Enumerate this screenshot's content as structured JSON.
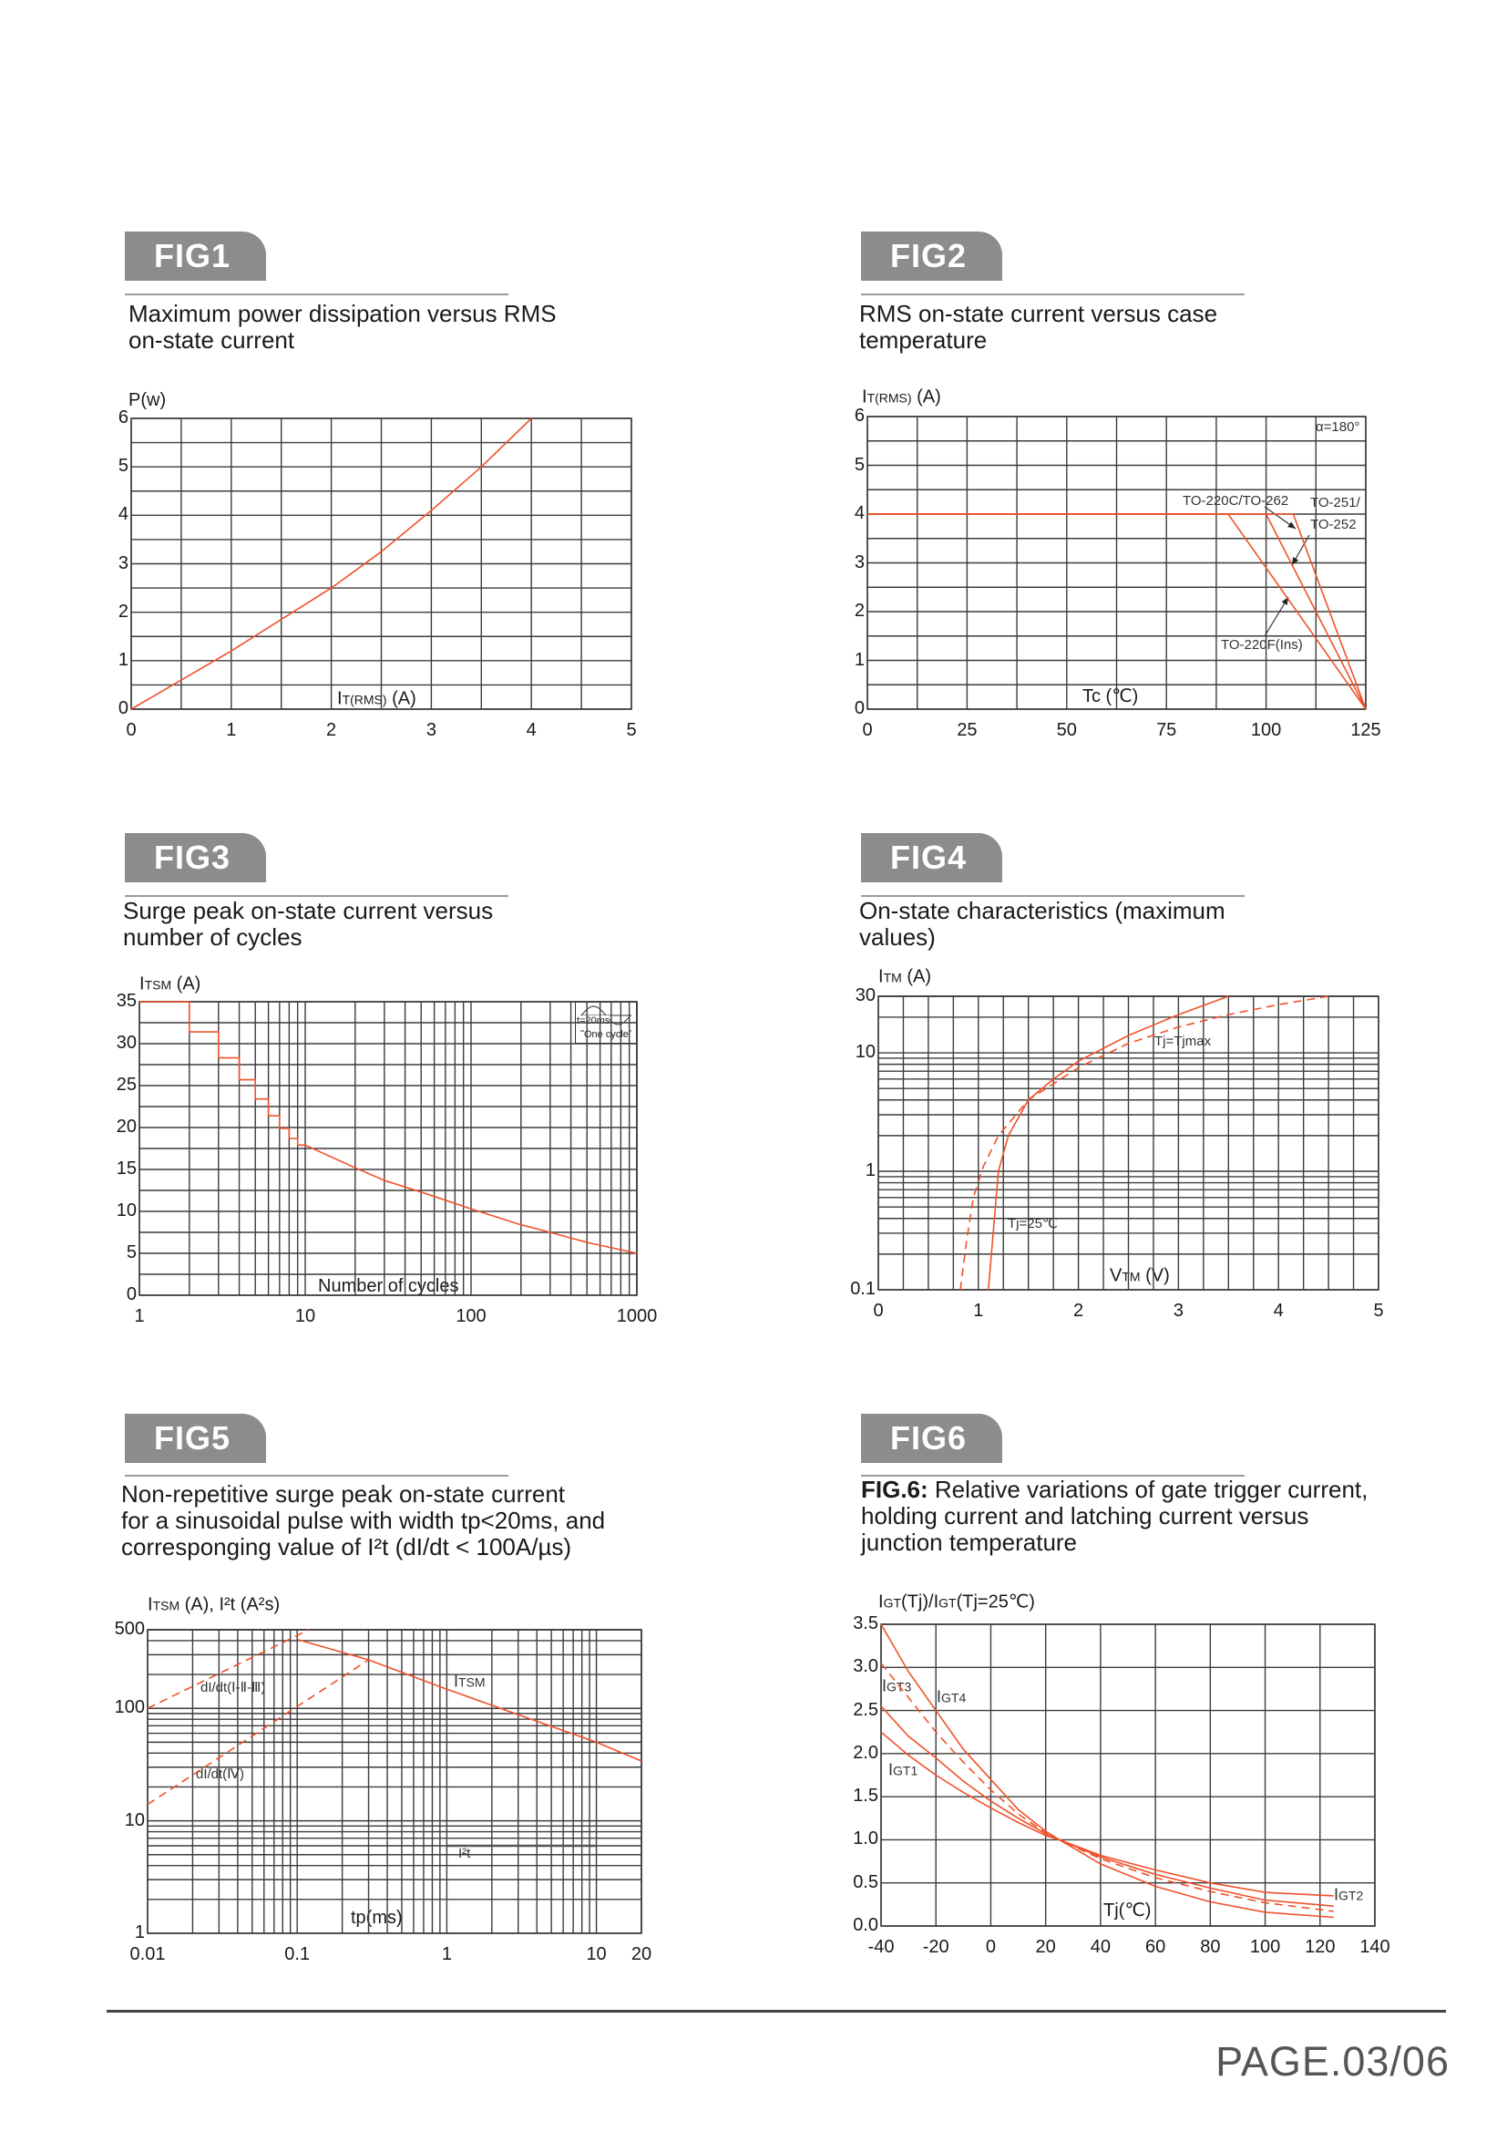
{
  "figures": [
    {
      "tab": "FIG1",
      "caption": [
        "Maximum power dissipation versus RMS",
        "on-state current"
      ]
    },
    {
      "tab": "FIG2",
      "caption": [
        "RMS on-state current versus case",
        "temperature"
      ]
    },
    {
      "tab": "FIG3",
      "caption": [
        "Surge peak on-state current versus",
        "number of cycles"
      ]
    },
    {
      "tab": "FIG4",
      "caption": [
        "On-state characteristics (maximum",
        "values)"
      ]
    },
    {
      "tab": "FIG5",
      "caption": [
        "Non-repetitive surge peak on-state current",
        "for a sinusoidal pulse with width tp<20ms, and",
        "corresponging value of I²t (dI/dt < 100A/µs)"
      ]
    },
    {
      "tab": "FIG6",
      "caption_bold": "FIG.6:",
      "caption": [
        " Relative variations of gate trigger current,",
        "holding current and latching current versus",
        "junction temperature"
      ]
    }
  ],
  "footer": "PAGE.03/06",
  "colors": {
    "curve": "#f0522a",
    "grid": "#3c3c3c",
    "tab": "#8c8c8c"
  },
  "chart_data": [
    {
      "type": "line",
      "ylabel": {
        "main": "P(w)"
      },
      "xlabel": {
        "main": "I",
        "sub": "T(RMS)",
        "rest": " (A)"
      },
      "xscale": "linear",
      "yscale": "linear",
      "xlim": [
        0,
        5
      ],
      "ylim": [
        0,
        6
      ],
      "x_grid_step": 0.5,
      "y_grid_step": 0.5,
      "grid": true,
      "x_ticks": [
        "0",
        "1",
        "2",
        "3",
        "4",
        "5"
      ],
      "y_ticks": [
        "0",
        "1",
        "2",
        "3",
        "4",
        "5",
        "6"
      ],
      "series": [
        {
          "style": "solid",
          "points": [
            [
              0,
              0
            ],
            [
              0.5,
              0.6
            ],
            [
              1,
              1.2
            ],
            [
              1.5,
              1.85
            ],
            [
              2,
              2.5
            ],
            [
              2.5,
              3.25
            ],
            [
              3,
              4.1
            ],
            [
              3.5,
              5.0
            ],
            [
              4,
              6.0
            ]
          ]
        }
      ],
      "annotations": []
    },
    {
      "type": "line",
      "ylabel": {
        "main": "I",
        "sub": "T(RMS)",
        "rest": " (A)"
      },
      "xlabel": {
        "main": "Tc (℃)"
      },
      "xscale": "linear",
      "yscale": "linear",
      "xlim": [
        0,
        125
      ],
      "ylim": [
        0,
        6
      ],
      "x_grid_step": 12.5,
      "y_grid_step": 0.5,
      "grid": true,
      "x_ticks": [
        "0",
        "25",
        "50",
        "75",
        "100",
        "125"
      ],
      "y_ticks": [
        "0",
        "1",
        "2",
        "3",
        "4",
        "5",
        "6"
      ],
      "series": [
        {
          "name": "TO-220F(Ins)",
          "style": "solid",
          "points": [
            [
              0,
              4
            ],
            [
              90.5,
              4
            ],
            [
              125,
              0
            ]
          ]
        },
        {
          "name": "TO-220C/TO-262",
          "style": "solid",
          "points": [
            [
              0,
              4
            ],
            [
              100,
              4
            ],
            [
              125,
              0
            ]
          ]
        },
        {
          "name": "TO-251/TO-252",
          "style": "solid",
          "points": [
            [
              0,
              4
            ],
            [
              106.8,
              4
            ],
            [
              125,
              0
            ]
          ]
        }
      ],
      "annotations": [
        {
          "main": "α=180°"
        },
        {
          "main": "TO-220C/TO-262"
        },
        {
          "main": "TO-251/"
        },
        {
          "main": "TO-252"
        },
        {
          "main": "TO-220F(Ins)"
        }
      ]
    },
    {
      "type": "line",
      "ylabel": {
        "main": "I",
        "sub": "TSM",
        "rest": " (A)"
      },
      "xlabel": {
        "main": "Number of cycles"
      },
      "xscale": "log",
      "yscale": "linear",
      "xlim": [
        1,
        1000
      ],
      "ylim": [
        0,
        35
      ],
      "y_grid_step": 2.5,
      "grid": true,
      "x_ticks": [
        "1",
        "10",
        "100",
        "1000"
      ],
      "y_ticks": [
        "0",
        "5",
        "10",
        "15",
        "20",
        "25",
        "30",
        "35"
      ],
      "series": [
        {
          "style": "solid",
          "points": [
            [
              1,
              35
            ],
            [
              2,
              35
            ],
            [
              2,
              31.4
            ],
            [
              3,
              31.4
            ],
            [
              3,
              28.3
            ],
            [
              4,
              28.3
            ],
            [
              4,
              25.7
            ],
            [
              5,
              25.7
            ],
            [
              5,
              23.4
            ],
            [
              6,
              23.4
            ],
            [
              6,
              21.4
            ],
            [
              7,
              21.4
            ],
            [
              7,
              19.9
            ],
            [
              8,
              19.9
            ],
            [
              8,
              18.7
            ],
            [
              9,
              18.7
            ],
            [
              9,
              17.9
            ],
            [
              10,
              17.9
            ],
            [
              20,
              15.2
            ],
            [
              30,
              13.7
            ],
            [
              50,
              12.3
            ],
            [
              100,
              10.3
            ],
            [
              200,
              8.4
            ],
            [
              300,
              7.5
            ],
            [
              500,
              6.3
            ],
            [
              1000,
              5.0
            ]
          ]
        }
      ],
      "inset": {
        "period": "t=20ms",
        "cycle": "One cycle"
      },
      "annotations": []
    },
    {
      "type": "line",
      "ylabel": {
        "main": "I",
        "sub": "TM",
        "rest": " (A)"
      },
      "xlabel": {
        "main": "V",
        "sub": "TM",
        "rest": " (V)"
      },
      "xscale": "linear",
      "yscale": "log",
      "xlim": [
        0,
        5
      ],
      "ylim": [
        0.1,
        30
      ],
      "x_grid_step": 0.25,
      "grid": true,
      "x_ticks": [
        "0",
        "1",
        "2",
        "3",
        "4",
        "5"
      ],
      "y_ticks": [
        "0.1",
        "1",
        "10",
        "30"
      ],
      "series": [
        {
          "name": "Tj=25℃",
          "style": "solid",
          "points": [
            [
              1.1,
              0.1
            ],
            [
              1.13,
              0.2
            ],
            [
              1.17,
              0.5
            ],
            [
              1.2,
              1
            ],
            [
              1.3,
              2
            ],
            [
              1.5,
              4
            ],
            [
              1.75,
              6
            ],
            [
              2,
              8.5
            ],
            [
              2.5,
              14
            ],
            [
              3,
              21
            ],
            [
              3.5,
              30
            ]
          ]
        },
        {
          "name": "Tj=Tjmax",
          "style": "dashed",
          "points": [
            [
              0.82,
              0.1
            ],
            [
              0.88,
              0.25
            ],
            [
              0.95,
              0.6
            ],
            [
              1.05,
              1.1
            ],
            [
              1.2,
              2
            ],
            [
              1.5,
              4
            ],
            [
              2,
              7.5
            ],
            [
              2.5,
              12
            ],
            [
              3,
              16.5
            ],
            [
              3.5,
              21
            ],
            [
              4,
              25.5
            ],
            [
              4.5,
              30
            ]
          ]
        }
      ],
      "annotations": [
        {
          "main": "Tj=Tjmax"
        },
        {
          "main": "Tj=25℃"
        }
      ]
    },
    {
      "type": "line",
      "ylabel": {
        "main": "I",
        "sub": "TSM",
        "rest": " (A), I²t (A²s)"
      },
      "xlabel": {
        "main": "tp(ms)"
      },
      "xscale": "log",
      "yscale": "log",
      "xlim": [
        0.01,
        20
      ],
      "ylim": [
        1,
        500
      ],
      "grid": true,
      "x_ticks": [
        "0.01",
        "0.1",
        "1",
        "10",
        "20"
      ],
      "y_ticks": [
        "1",
        "10",
        "100",
        "500"
      ],
      "series": [
        {
          "name": "ITSM",
          "style": "solid",
          "points": [
            [
              0.1,
              410
            ],
            [
              0.3,
              270
            ],
            [
              1,
              148
            ],
            [
              3,
              88
            ],
            [
              10,
              50
            ],
            [
              20,
              34
            ]
          ]
        },
        {
          "name": "dI/dt(Ⅰ-Ⅱ-Ⅲ)",
          "style": "dashed",
          "points": [
            [
              0.01,
              100
            ],
            [
              0.12,
              500
            ]
          ]
        },
        {
          "name": "dI/dt(Ⅳ)",
          "style": "dashed",
          "points": [
            [
              0.01,
              14
            ],
            [
              0.3,
              270
            ]
          ]
        },
        {
          "name": "I²t",
          "style": "solid-dark",
          "points": [
            [
              1,
              6
            ],
            [
              10,
              6
            ]
          ]
        }
      ],
      "annotations": [
        {
          "main": "dI/dt(Ⅰ-Ⅱ-Ⅲ)"
        },
        {
          "main": "dI/dt(Ⅳ)"
        },
        {
          "main": "I",
          "sub": "TSM"
        },
        {
          "main": "I²t"
        }
      ]
    },
    {
      "type": "line",
      "ylabel": {
        "main": "I",
        "sub": "GT",
        "rest": "(Tj)/",
        "main2": "I",
        "sub2": "GT",
        "rest2": "(Tj=25℃)"
      },
      "xlabel": {
        "main": "Tj(℃)"
      },
      "xscale": "linear",
      "yscale": "linear",
      "xlim": [
        -40,
        140
      ],
      "ylim": [
        0,
        3.5
      ],
      "x_grid_step": 20,
      "y_grid_step": 0.5,
      "grid": true,
      "x_ticks": [
        "-40",
        "-20",
        "0",
        "20",
        "40",
        "60",
        "80",
        "100",
        "120",
        "140"
      ],
      "y_ticks": [
        "0.0",
        "0.5",
        "1.0",
        "1.5",
        "2.0",
        "2.5",
        "3.0",
        "3.5"
      ],
      "series": [
        {
          "name": "IGT4",
          "style": "solid",
          "points": [
            [
              -40,
              3.5
            ],
            [
              -30,
              2.95
            ],
            [
              -20,
              2.5
            ],
            [
              -10,
              2.05
            ],
            [
              0,
              1.7
            ],
            [
              10,
              1.35
            ],
            [
              20,
              1.1
            ],
            [
              25,
              1.0
            ],
            [
              40,
              0.72
            ],
            [
              60,
              0.46
            ],
            [
              80,
              0.28
            ],
            [
              100,
              0.16
            ],
            [
              125,
              0.1
            ]
          ]
        },
        {
          "name": "IGT3",
          "style": "dashed",
          "points": [
            [
              -40,
              3.05
            ],
            [
              -30,
              2.65
            ],
            [
              -20,
              2.25
            ],
            [
              -10,
              1.9
            ],
            [
              0,
              1.58
            ],
            [
              10,
              1.3
            ],
            [
              20,
              1.08
            ],
            [
              25,
              1.0
            ],
            [
              40,
              0.78
            ],
            [
              60,
              0.56
            ],
            [
              80,
              0.4
            ],
            [
              100,
              0.27
            ],
            [
              125,
              0.17
            ]
          ]
        },
        {
          "name": "IGT1",
          "style": "solid",
          "points": [
            [
              -40,
              2.55
            ],
            [
              -30,
              2.2
            ],
            [
              -20,
              1.95
            ],
            [
              -10,
              1.68
            ],
            [
              0,
              1.45
            ],
            [
              10,
              1.25
            ],
            [
              20,
              1.07
            ],
            [
              25,
              1.0
            ],
            [
              40,
              0.8
            ],
            [
              60,
              0.6
            ],
            [
              80,
              0.44
            ],
            [
              100,
              0.3
            ],
            [
              125,
              0.23
            ]
          ]
        },
        {
          "name": "IGT2",
          "style": "solid",
          "points": [
            [
              -40,
              2.25
            ],
            [
              -30,
              1.98
            ],
            [
              -20,
              1.75
            ],
            [
              -10,
              1.55
            ],
            [
              0,
              1.37
            ],
            [
              10,
              1.2
            ],
            [
              20,
              1.05
            ],
            [
              25,
              1.0
            ],
            [
              40,
              0.82
            ],
            [
              60,
              0.65
            ],
            [
              80,
              0.5
            ],
            [
              100,
              0.39
            ],
            [
              125,
              0.35
            ]
          ]
        }
      ],
      "annotations": [
        {
          "main": "I",
          "sub": "GT3"
        },
        {
          "main": "I",
          "sub": "GT4"
        },
        {
          "main": "I",
          "sub": "GT1"
        },
        {
          "main": "I",
          "sub": "GT2"
        }
      ]
    }
  ]
}
